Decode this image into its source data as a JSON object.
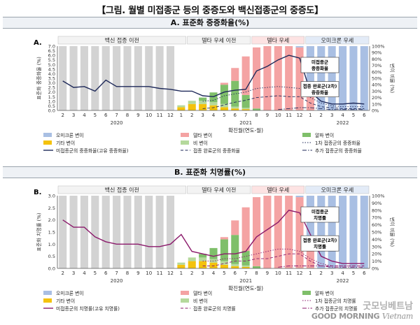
{
  "page_title": "【그림. 월별 미접종군 등의 중증도와 백신접종군의 중증도】",
  "colors": {
    "omicron": "#a9bfe3",
    "delta": "#f4a3a3",
    "alpha": "#7fbf6a",
    "other": "#f4c20d",
    "beta": "#b5d99c",
    "pre": "#d3d3d3",
    "unvax_a": "#1f2a5a",
    "unvax_b": "#8b1a6b",
    "axis": "#555555",
    "panel_bg": "#eef1f5"
  },
  "watermark": {
    "logo": "굿모닝베트남",
    "text": "GOOD MORNING",
    "text2": "Vietnam"
  },
  "chart_data": [
    {
      "id": "A",
      "type": "bar",
      "panel_label": "A.",
      "title": "A. 표준화 중증화율(%)",
      "ylabel_left": "표준화 중증화율 (%)",
      "ylabel_right": "변이 비율 (%)",
      "xlabel": "확진월(연도-월)",
      "ylim": [
        0,
        7.0
      ],
      "y_ticks": [
        "0.0",
        "0.5",
        "1.0",
        "1.5",
        "2.0",
        "2.5",
        "3.0",
        "3.5",
        "4.0",
        "4.5",
        "5.0",
        "5.5",
        "6.0",
        "6.5",
        "7.0"
      ],
      "y_tick_step": 0.5,
      "y2_ticks": [
        "0%",
        "10%",
        "20%",
        "30%",
        "40%",
        "50%",
        "60%",
        "70%",
        "80%",
        "90%",
        "100%"
      ],
      "months": [
        "2",
        "3",
        "4",
        "5",
        "6",
        "7",
        "8",
        "9",
        "10",
        "11",
        "12",
        "1",
        "2",
        "3",
        "4",
        "5",
        "6",
        "7",
        "8",
        "9",
        "10",
        "11",
        "12",
        "1",
        "2",
        "3",
        "4",
        "5",
        "6"
      ],
      "years": [
        {
          "label": "2020",
          "at_index": 5
        },
        {
          "label": "2021",
          "at_index": 17
        },
        {
          "label": "2022",
          "at_index": 26
        }
      ],
      "periods": [
        {
          "label": "백신 접종 이전",
          "start": 0,
          "end": 11
        },
        {
          "label": "델타 우세 이전",
          "start": 12,
          "end": 17
        },
        {
          "label": "델타 우세",
          "start": 18,
          "end": 22
        },
        {
          "label": "오미크론 우세",
          "start": 23,
          "end": 28
        }
      ],
      "variant_share_pct": {
        "omicron": [
          0,
          0,
          0,
          0,
          0,
          0,
          0,
          0,
          0,
          0,
          0,
          0,
          0,
          0,
          0,
          0,
          0,
          0,
          0,
          0,
          0,
          0,
          2,
          60,
          100,
          100,
          100,
          100,
          100
        ],
        "delta": [
          0,
          0,
          0,
          0,
          0,
          0,
          0,
          0,
          0,
          0,
          0,
          0,
          0,
          0,
          0,
          3,
          20,
          60,
          95,
          100,
          100,
          100,
          98,
          40,
          0,
          0,
          0,
          0,
          0
        ],
        "alpha": [
          0,
          0,
          0,
          0,
          0,
          0,
          0,
          0,
          0,
          0,
          0,
          0,
          0,
          5,
          15,
          30,
          40,
          20,
          3,
          0,
          0,
          0,
          0,
          0,
          0,
          0,
          0,
          0,
          0
        ],
        "other": [
          0,
          0,
          0,
          0,
          0,
          0,
          0,
          0,
          0,
          0,
          0,
          5,
          10,
          10,
          8,
          5,
          3,
          2,
          0,
          0,
          0,
          0,
          0,
          0,
          0,
          0,
          0,
          0,
          0
        ],
        "beta": [
          0,
          0,
          0,
          0,
          0,
          0,
          0,
          0,
          0,
          0,
          0,
          3,
          5,
          5,
          5,
          5,
          3,
          2,
          0,
          0,
          0,
          0,
          0,
          0,
          0,
          0,
          0,
          0,
          0
        ]
      },
      "series": [
        {
          "name": "미접종군의 중증화율(고유 중증화율)",
          "style": "solid",
          "color": "#1f2a5a",
          "values": [
            3.2,
            2.5,
            2.6,
            2.1,
            3.3,
            2.6,
            2.6,
            2.6,
            2.6,
            2.4,
            2.3,
            2.1,
            2.1,
            1.6,
            1.5,
            2.0,
            2.2,
            2.3,
            4.3,
            4.8,
            5.5,
            6.0,
            5.7,
            2.0,
            1.0,
            0.7,
            0.7,
            0.8,
            0.7
          ]
        },
        {
          "name": "1차 접종군의 중증화율",
          "style": "dotted",
          "color": "#1f2a5a",
          "values": [
            null,
            null,
            null,
            null,
            null,
            null,
            null,
            null,
            null,
            null,
            null,
            null,
            null,
            1.0,
            1.1,
            1.6,
            1.8,
            2.0,
            2.4,
            2.5,
            2.6,
            2.5,
            2.4,
            1.4,
            0.8,
            0.5,
            0.4,
            0.4,
            0.4
          ]
        },
        {
          "name": "접종 완료군의 중증화율",
          "style": "dashed",
          "color": "#1f2a5a",
          "values": [
            null,
            null,
            null,
            null,
            null,
            null,
            null,
            null,
            null,
            null,
            null,
            null,
            null,
            0.2,
            0.3,
            0.6,
            0.9,
            1.1,
            1.4,
            1.5,
            1.6,
            1.5,
            1.5,
            0.8,
            0.4,
            0.3,
            0.2,
            0.2,
            0.2
          ]
        },
        {
          "name": "추가 접종군의 중증화율",
          "style": "dashdot",
          "color": "#1f2a5a",
          "values": [
            null,
            null,
            null,
            null,
            null,
            null,
            null,
            null,
            null,
            null,
            null,
            null,
            null,
            null,
            null,
            null,
            null,
            null,
            null,
            null,
            0.1,
            0.2,
            0.3,
            0.3,
            0.2,
            0.1,
            0.1,
            0.1,
            0.1
          ]
        }
      ],
      "annotations": [
        {
          "label": "미접종군 중증화율",
          "target_index": 21
        },
        {
          "label": "접종 완료군(2차) 중증화율",
          "target_index": 25
        }
      ],
      "legend": [
        {
          "kind": "bar",
          "color_key": "omicron",
          "label": "오미크론 변이"
        },
        {
          "kind": "bar",
          "color_key": "delta",
          "label": "델타 변이"
        },
        {
          "kind": "bar",
          "color_key": "alpha",
          "label": "알파 변이"
        },
        {
          "kind": "bar",
          "color_key": "other",
          "label": "기타 변이"
        },
        {
          "kind": "bar",
          "color_key": "beta",
          "label": "비 변이"
        },
        {
          "kind": "line",
          "style": "dotted",
          "label": "1차 접종군의 중증화율"
        },
        {
          "kind": "line",
          "style": "solid",
          "label": "미접종군의 중증화율(고유 중증화율)"
        },
        {
          "kind": "line",
          "style": "dashed",
          "label": "접종 완료군의 중증화율"
        },
        {
          "kind": "line",
          "style": "dashdot",
          "label": "추가 접종군의 중증화율"
        }
      ]
    },
    {
      "id": "B",
      "type": "bar",
      "panel_label": "B.",
      "title": "B. 표준화 치명률(%)",
      "ylabel_left": "표준화 치명률 (%)",
      "ylabel_right": "변이 비율 (%)",
      "xlabel": "확진월(연도-월)",
      "ylim": [
        0,
        3.0
      ],
      "y_ticks": [
        "0.0",
        "0.5",
        "1.0",
        "1.5",
        "2.0",
        "2.5",
        "3.0"
      ],
      "y_tick_step": 0.5,
      "y2_ticks": [
        "0%",
        "10%",
        "20%",
        "30%",
        "40%",
        "50%",
        "60%",
        "70%",
        "80%",
        "90%",
        "100%"
      ],
      "months": [
        "2",
        "3",
        "4",
        "5",
        "6",
        "7",
        "8",
        "9",
        "10",
        "11",
        "12",
        "1",
        "2",
        "3",
        "4",
        "5",
        "6",
        "7",
        "8",
        "9",
        "10",
        "11",
        "12",
        "1",
        "2",
        "3",
        "4",
        "5",
        "6"
      ],
      "years": [
        {
          "label": "2020",
          "at_index": 5
        },
        {
          "label": "2021",
          "at_index": 17
        },
        {
          "label": "2022",
          "at_index": 26
        }
      ],
      "periods": [
        {
          "label": "백신 접종 이전",
          "start": 0,
          "end": 11
        },
        {
          "label": "델타 우세 이전",
          "start": 12,
          "end": 17
        },
        {
          "label": "델타 우세",
          "start": 18,
          "end": 22
        },
        {
          "label": "오미크론 우세",
          "start": 23,
          "end": 28
        }
      ],
      "variant_share_pct": {
        "omicron": [
          0,
          0,
          0,
          0,
          0,
          0,
          0,
          0,
          0,
          0,
          0,
          0,
          0,
          0,
          0,
          0,
          0,
          0,
          0,
          0,
          0,
          0,
          2,
          60,
          100,
          100,
          100,
          100,
          100
        ],
        "delta": [
          0,
          0,
          0,
          0,
          0,
          0,
          0,
          0,
          0,
          0,
          0,
          0,
          0,
          0,
          0,
          3,
          20,
          60,
          95,
          100,
          100,
          100,
          98,
          40,
          0,
          0,
          0,
          0,
          0
        ],
        "alpha": [
          0,
          0,
          0,
          0,
          0,
          0,
          0,
          0,
          0,
          0,
          0,
          0,
          0,
          5,
          15,
          30,
          40,
          20,
          3,
          0,
          0,
          0,
          0,
          0,
          0,
          0,
          0,
          0,
          0
        ],
        "other": [
          0,
          0,
          0,
          0,
          0,
          0,
          0,
          0,
          0,
          0,
          0,
          5,
          10,
          10,
          8,
          5,
          3,
          2,
          0,
          0,
          0,
          0,
          0,
          0,
          0,
          0,
          0,
          0,
          0
        ],
        "beta": [
          0,
          0,
          0,
          0,
          0,
          0,
          0,
          0,
          0,
          0,
          0,
          3,
          5,
          5,
          5,
          5,
          3,
          2,
          0,
          0,
          0,
          0,
          0,
          0,
          0,
          0,
          0,
          0,
          0
        ]
      },
      "series": [
        {
          "name": "미접종군의 치명률(고유 치명률)",
          "style": "solid",
          "color": "#8b1a6b",
          "values": [
            2.0,
            1.7,
            1.7,
            1.3,
            1.1,
            1.0,
            1.0,
            1.0,
            0.9,
            0.9,
            1.0,
            1.4,
            0.7,
            0.6,
            0.5,
            0.6,
            0.6,
            0.7,
            1.3,
            1.6,
            1.9,
            2.4,
            2.3,
            1.4,
            0.5,
            0.3,
            0.2,
            0.2,
            0.2
          ]
        },
        {
          "name": "1차 접종군의 치명률",
          "style": "dotted",
          "color": "#8b1a6b",
          "values": [
            null,
            null,
            null,
            null,
            null,
            null,
            null,
            null,
            null,
            null,
            null,
            null,
            null,
            0.3,
            0.3,
            0.4,
            0.4,
            0.5,
            0.6,
            0.7,
            0.8,
            0.8,
            0.7,
            0.4,
            0.2,
            0.1,
            0.1,
            0.1,
            0.1
          ]
        },
        {
          "name": "접종 완료군의 치명률",
          "style": "dashed",
          "color": "#8b1a6b",
          "values": [
            null,
            null,
            null,
            null,
            null,
            null,
            null,
            null,
            null,
            null,
            null,
            null,
            null,
            0.1,
            0.1,
            0.2,
            0.3,
            0.3,
            0.4,
            0.4,
            0.5,
            0.6,
            0.6,
            0.3,
            0.1,
            0.1,
            0.1,
            0.1,
            0.1
          ]
        },
        {
          "name": "추가 접종군의 치명률",
          "style": "dashdot",
          "color": "#8b1a6b",
          "values": [
            null,
            null,
            null,
            null,
            null,
            null,
            null,
            null,
            null,
            null,
            null,
            null,
            null,
            null,
            null,
            null,
            null,
            null,
            null,
            null,
            0.05,
            0.1,
            0.1,
            0.1,
            0.1,
            0.05,
            0.05,
            0.05,
            0.05
          ]
        }
      ],
      "annotations": [
        {
          "label": "미접종군 치명률",
          "target_index": 22
        },
        {
          "label": "접종 완료군(2차) 치명률",
          "target_index": 25
        }
      ],
      "legend": [
        {
          "kind": "bar",
          "color_key": "omicron",
          "label": "오미크론 변이"
        },
        {
          "kind": "bar",
          "color_key": "delta",
          "label": "델타 변이"
        },
        {
          "kind": "bar",
          "color_key": "alpha",
          "label": "알파 변이"
        },
        {
          "kind": "bar",
          "color_key": "other",
          "label": "기타 변이"
        },
        {
          "kind": "bar",
          "color_key": "beta",
          "label": "비 변이"
        },
        {
          "kind": "line",
          "style": "dotted",
          "label": "1차 접종군의 치명률"
        },
        {
          "kind": "line",
          "style": "solid",
          "label": "미접종군의 치명률(고유 치명률)"
        },
        {
          "kind": "line",
          "style": "dashed",
          "label": "접종 완료군의 치명률"
        },
        {
          "kind": "line",
          "style": "dashdot",
          "label": "추가 접종군의 치명률"
        }
      ]
    }
  ]
}
